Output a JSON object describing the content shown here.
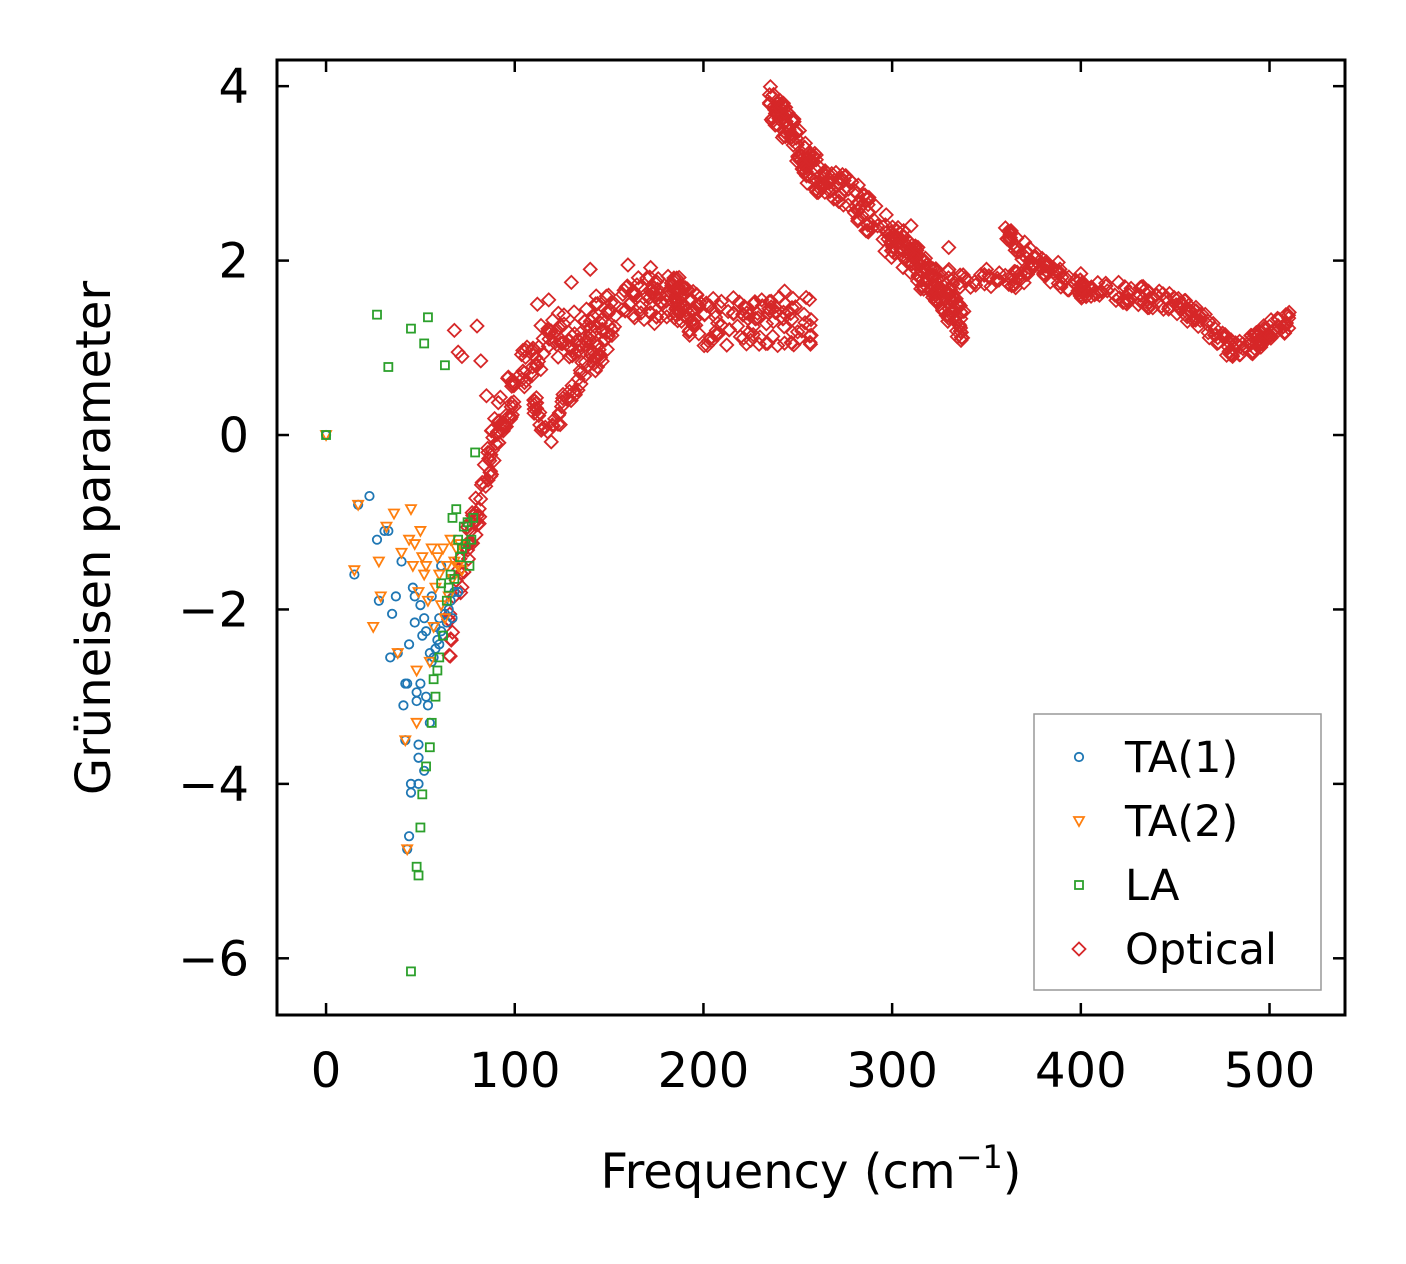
{
  "chart_data": {
    "type": "scatter",
    "xlabel_main": "Frequency (cm",
    "xlabel_sup": "−1",
    "xlabel_close": ")",
    "ylabel": "Grüneisen parameter",
    "xlim": [
      -26,
      540
    ],
    "ylim": [
      -6.65,
      4.3
    ],
    "xticks": [
      0,
      100,
      200,
      300,
      400,
      500
    ],
    "yticks": [
      4,
      2,
      0,
      -2,
      -4,
      -6
    ],
    "xtick_labels": [
      "0",
      "100",
      "200",
      "300",
      "400",
      "500"
    ],
    "ytick_labels": [
      "4",
      "2",
      "0",
      "−2",
      "−4",
      "−6"
    ],
    "legend_position": "lower-right",
    "series": [
      {
        "name": "TA(1)",
        "marker": "circle",
        "color": "#1f77b4",
        "points": [
          [
            0,
            0
          ],
          [
            15,
            -1.6
          ],
          [
            17,
            -0.8
          ],
          [
            23,
            -0.7
          ],
          [
            27,
            -1.2
          ],
          [
            28,
            -1.9
          ],
          [
            31,
            -1.1
          ],
          [
            33,
            -1.1
          ],
          [
            34,
            -2.55
          ],
          [
            35,
            -2.05
          ],
          [
            37,
            -1.85
          ],
          [
            38,
            -2.5
          ],
          [
            40,
            -1.45
          ],
          [
            41,
            -3.1
          ],
          [
            42,
            -2.85
          ],
          [
            42,
            -3.5
          ],
          [
            43,
            -2.85
          ],
          [
            43,
            -4.75
          ],
          [
            44,
            -2.4
          ],
          [
            44,
            -4.6
          ],
          [
            45,
            -4.0
          ],
          [
            45,
            -4.1
          ],
          [
            46,
            -1.75
          ],
          [
            47,
            -2.15
          ],
          [
            47,
            -1.85
          ],
          [
            48,
            -3.05
          ],
          [
            48,
            -2.95
          ],
          [
            49,
            -3.7
          ],
          [
            49,
            -3.55
          ],
          [
            49,
            -4.0
          ],
          [
            50,
            -1.95
          ],
          [
            50,
            -2.85
          ],
          [
            51,
            -2.3
          ],
          [
            52,
            -2.1
          ],
          [
            52,
            -3.85
          ],
          [
            53,
            -3.0
          ],
          [
            53,
            -2.25
          ],
          [
            54,
            -3.1
          ],
          [
            55,
            -2.5
          ],
          [
            55,
            -3.3
          ],
          [
            56,
            -2.6
          ],
          [
            56,
            -1.85
          ],
          [
            57,
            -2.55
          ],
          [
            58,
            -2.2
          ],
          [
            58,
            -2.45
          ],
          [
            59,
            -2.35
          ],
          [
            60,
            -2.1
          ],
          [
            60,
            -2.4
          ],
          [
            61,
            -1.5
          ],
          [
            61,
            -2.25
          ],
          [
            62,
            -2.3
          ],
          [
            63,
            -2.05
          ],
          [
            64,
            -2.15
          ],
          [
            65,
            -2.0
          ],
          [
            66,
            -1.9
          ],
          [
            67,
            -2.1
          ],
          [
            68,
            -1.8
          ],
          [
            70,
            -1.8
          ]
        ]
      },
      {
        "name": "TA(2)",
        "marker": "triangle-down",
        "color": "#ff7f0e",
        "points": [
          [
            0,
            0
          ],
          [
            15,
            -1.55
          ],
          [
            17,
            -0.8
          ],
          [
            25,
            -2.2
          ],
          [
            28,
            -1.45
          ],
          [
            29,
            -1.85
          ],
          [
            32,
            -1.05
          ],
          [
            36,
            -0.9
          ],
          [
            38,
            -2.5
          ],
          [
            40,
            -1.35
          ],
          [
            42,
            -3.5
          ],
          [
            43,
            -4.75
          ],
          [
            44,
            -1.2
          ],
          [
            45,
            -0.85
          ],
          [
            46,
            -1.5
          ],
          [
            47,
            -1.25
          ],
          [
            48,
            -2.7
          ],
          [
            48,
            -3.3
          ],
          [
            49,
            -1.8
          ],
          [
            50,
            -1.1
          ],
          [
            51,
            -1.4
          ],
          [
            52,
            -1.6
          ],
          [
            53,
            -1.5
          ],
          [
            54,
            -1.9
          ],
          [
            55,
            -2.6
          ],
          [
            56,
            -1.3
          ],
          [
            57,
            -2.2
          ],
          [
            58,
            -1.75
          ],
          [
            59,
            -1.4
          ],
          [
            60,
            -1.6
          ],
          [
            61,
            -1.95
          ],
          [
            62,
            -1.3
          ],
          [
            63,
            -2.1
          ],
          [
            64,
            -1.5
          ],
          [
            65,
            -1.85
          ],
          [
            66,
            -1.2
          ],
          [
            67,
            -1.65
          ],
          [
            68,
            -1.45
          ],
          [
            69,
            -1.3
          ],
          [
            70,
            -1.5
          ],
          [
            71,
            -1.25
          ],
          [
            72,
            -1.55
          ]
        ]
      },
      {
        "name": "LA",
        "marker": "square",
        "color": "#2ca02c",
        "points": [
          [
            0,
            0
          ],
          [
            27,
            1.38
          ],
          [
            33,
            0.78
          ],
          [
            45,
            1.22
          ],
          [
            45,
            -6.15
          ],
          [
            48,
            -4.95
          ],
          [
            49,
            -5.05
          ],
          [
            50,
            -4.5
          ],
          [
            51,
            -4.12
          ],
          [
            52,
            1.05
          ],
          [
            53,
            -3.8
          ],
          [
            54,
            1.35
          ],
          [
            55,
            -3.58
          ],
          [
            56,
            -3.3
          ],
          [
            57,
            -2.8
          ],
          [
            58,
            -3.0
          ],
          [
            59,
            -2.7
          ],
          [
            60,
            -2.55
          ],
          [
            61,
            -1.7
          ],
          [
            62,
            -2.3
          ],
          [
            63,
            0.8
          ],
          [
            64,
            -1.9
          ],
          [
            65,
            -1.75
          ],
          [
            66,
            -1.6
          ],
          [
            67,
            -0.95
          ],
          [
            68,
            -1.65
          ],
          [
            69,
            -0.85
          ],
          [
            70,
            -1.2
          ],
          [
            71,
            -1.4
          ],
          [
            72,
            -1.3
          ],
          [
            73,
            -1.05
          ],
          [
            74,
            -1.25
          ],
          [
            75,
            -1.0
          ],
          [
            76,
            -1.5
          ],
          [
            77,
            -1.2
          ],
          [
            78,
            -0.95
          ],
          [
            79,
            -0.2
          ]
        ]
      },
      {
        "name": "Optical",
        "marker": "diamond",
        "color": "#d62728",
        "segments": [
          {
            "xy": [
              [
                65,
                -2.35
              ],
              [
                75,
                -1.2
              ],
              [
                85,
                -0.45
              ],
              [
                92,
                0.2
              ],
              [
                100,
                0.55
              ],
              [
                108,
                0.85
              ],
              [
                115,
                1.05
              ],
              [
                125,
                1.15
              ],
              [
                135,
                1.2
              ],
              [
                145,
                1.35
              ],
              [
                155,
                1.45
              ],
              [
                165,
                1.55
              ],
              [
                175,
                1.55
              ],
              [
                185,
                1.6
              ],
              [
                190,
                1.45
              ],
              [
                200,
                1.3
              ],
              [
                215,
                1.3
              ],
              [
                230,
                1.3
              ],
              [
                245,
                1.3
              ],
              [
                258,
                1.3
              ]
            ],
            "n": 420,
            "jitter": 0.28
          },
          {
            "xy": [
              [
                110,
                0.4
              ],
              [
                118,
                0.0
              ],
              [
                125,
                0.3
              ],
              [
                132,
                0.6
              ],
              [
                140,
                0.8
              ],
              [
                150,
                1.1
              ]
            ],
            "n": 60,
            "jitter": 0.15
          },
          {
            "xy": [
              [
                235,
                3.8
              ],
              [
                245,
                3.55
              ],
              [
                255,
                3.1
              ],
              [
                265,
                2.9
              ],
              [
                280,
                2.7
              ],
              [
                295,
                2.35
              ],
              [
                310,
                2.05
              ],
              [
                320,
                1.75
              ],
              [
                330,
                1.5
              ],
              [
                338,
                1.2
              ]
            ],
            "n": 320,
            "jitter": 0.22
          },
          {
            "xy": [
              [
                300,
                2.2
              ],
              [
                320,
                1.9
              ],
              [
                340,
                1.75
              ],
              [
                360,
                1.78
              ],
              [
                372,
                1.8
              ]
            ],
            "n": 60,
            "jitter": 0.1
          },
          {
            "xy": [
              [
                360,
                2.35
              ],
              [
                372,
                2.05
              ],
              [
                385,
                1.85
              ],
              [
                398,
                1.7
              ],
              [
                410,
                1.65
              ],
              [
                430,
                1.6
              ],
              [
                450,
                1.5
              ],
              [
                465,
                1.3
              ],
              [
                478,
                1.0
              ],
              [
                492,
                1.05
              ],
              [
                500,
                1.2
              ],
              [
                512,
                1.32
              ]
            ],
            "n": 260,
            "jitter": 0.12
          }
        ],
        "scattered": [
          [
            68,
            1.2
          ],
          [
            70,
            0.95
          ],
          [
            72,
            0.9
          ],
          [
            80,
            1.25
          ],
          [
            82,
            0.85
          ],
          [
            85,
            0.45
          ],
          [
            112,
            1.5
          ],
          [
            118,
            1.55
          ],
          [
            130,
            1.75
          ],
          [
            140,
            1.9
          ],
          [
            160,
            1.95
          ],
          [
            172,
            1.92
          ],
          [
            243,
            1.65
          ],
          [
            285,
            2.75
          ],
          [
            310,
            2.4
          ],
          [
            330,
            2.15
          ],
          [
            350,
            1.9
          ],
          [
            388,
            1.98
          ],
          [
            400,
            1.85
          ],
          [
            420,
            1.75
          ]
        ]
      }
    ]
  }
}
